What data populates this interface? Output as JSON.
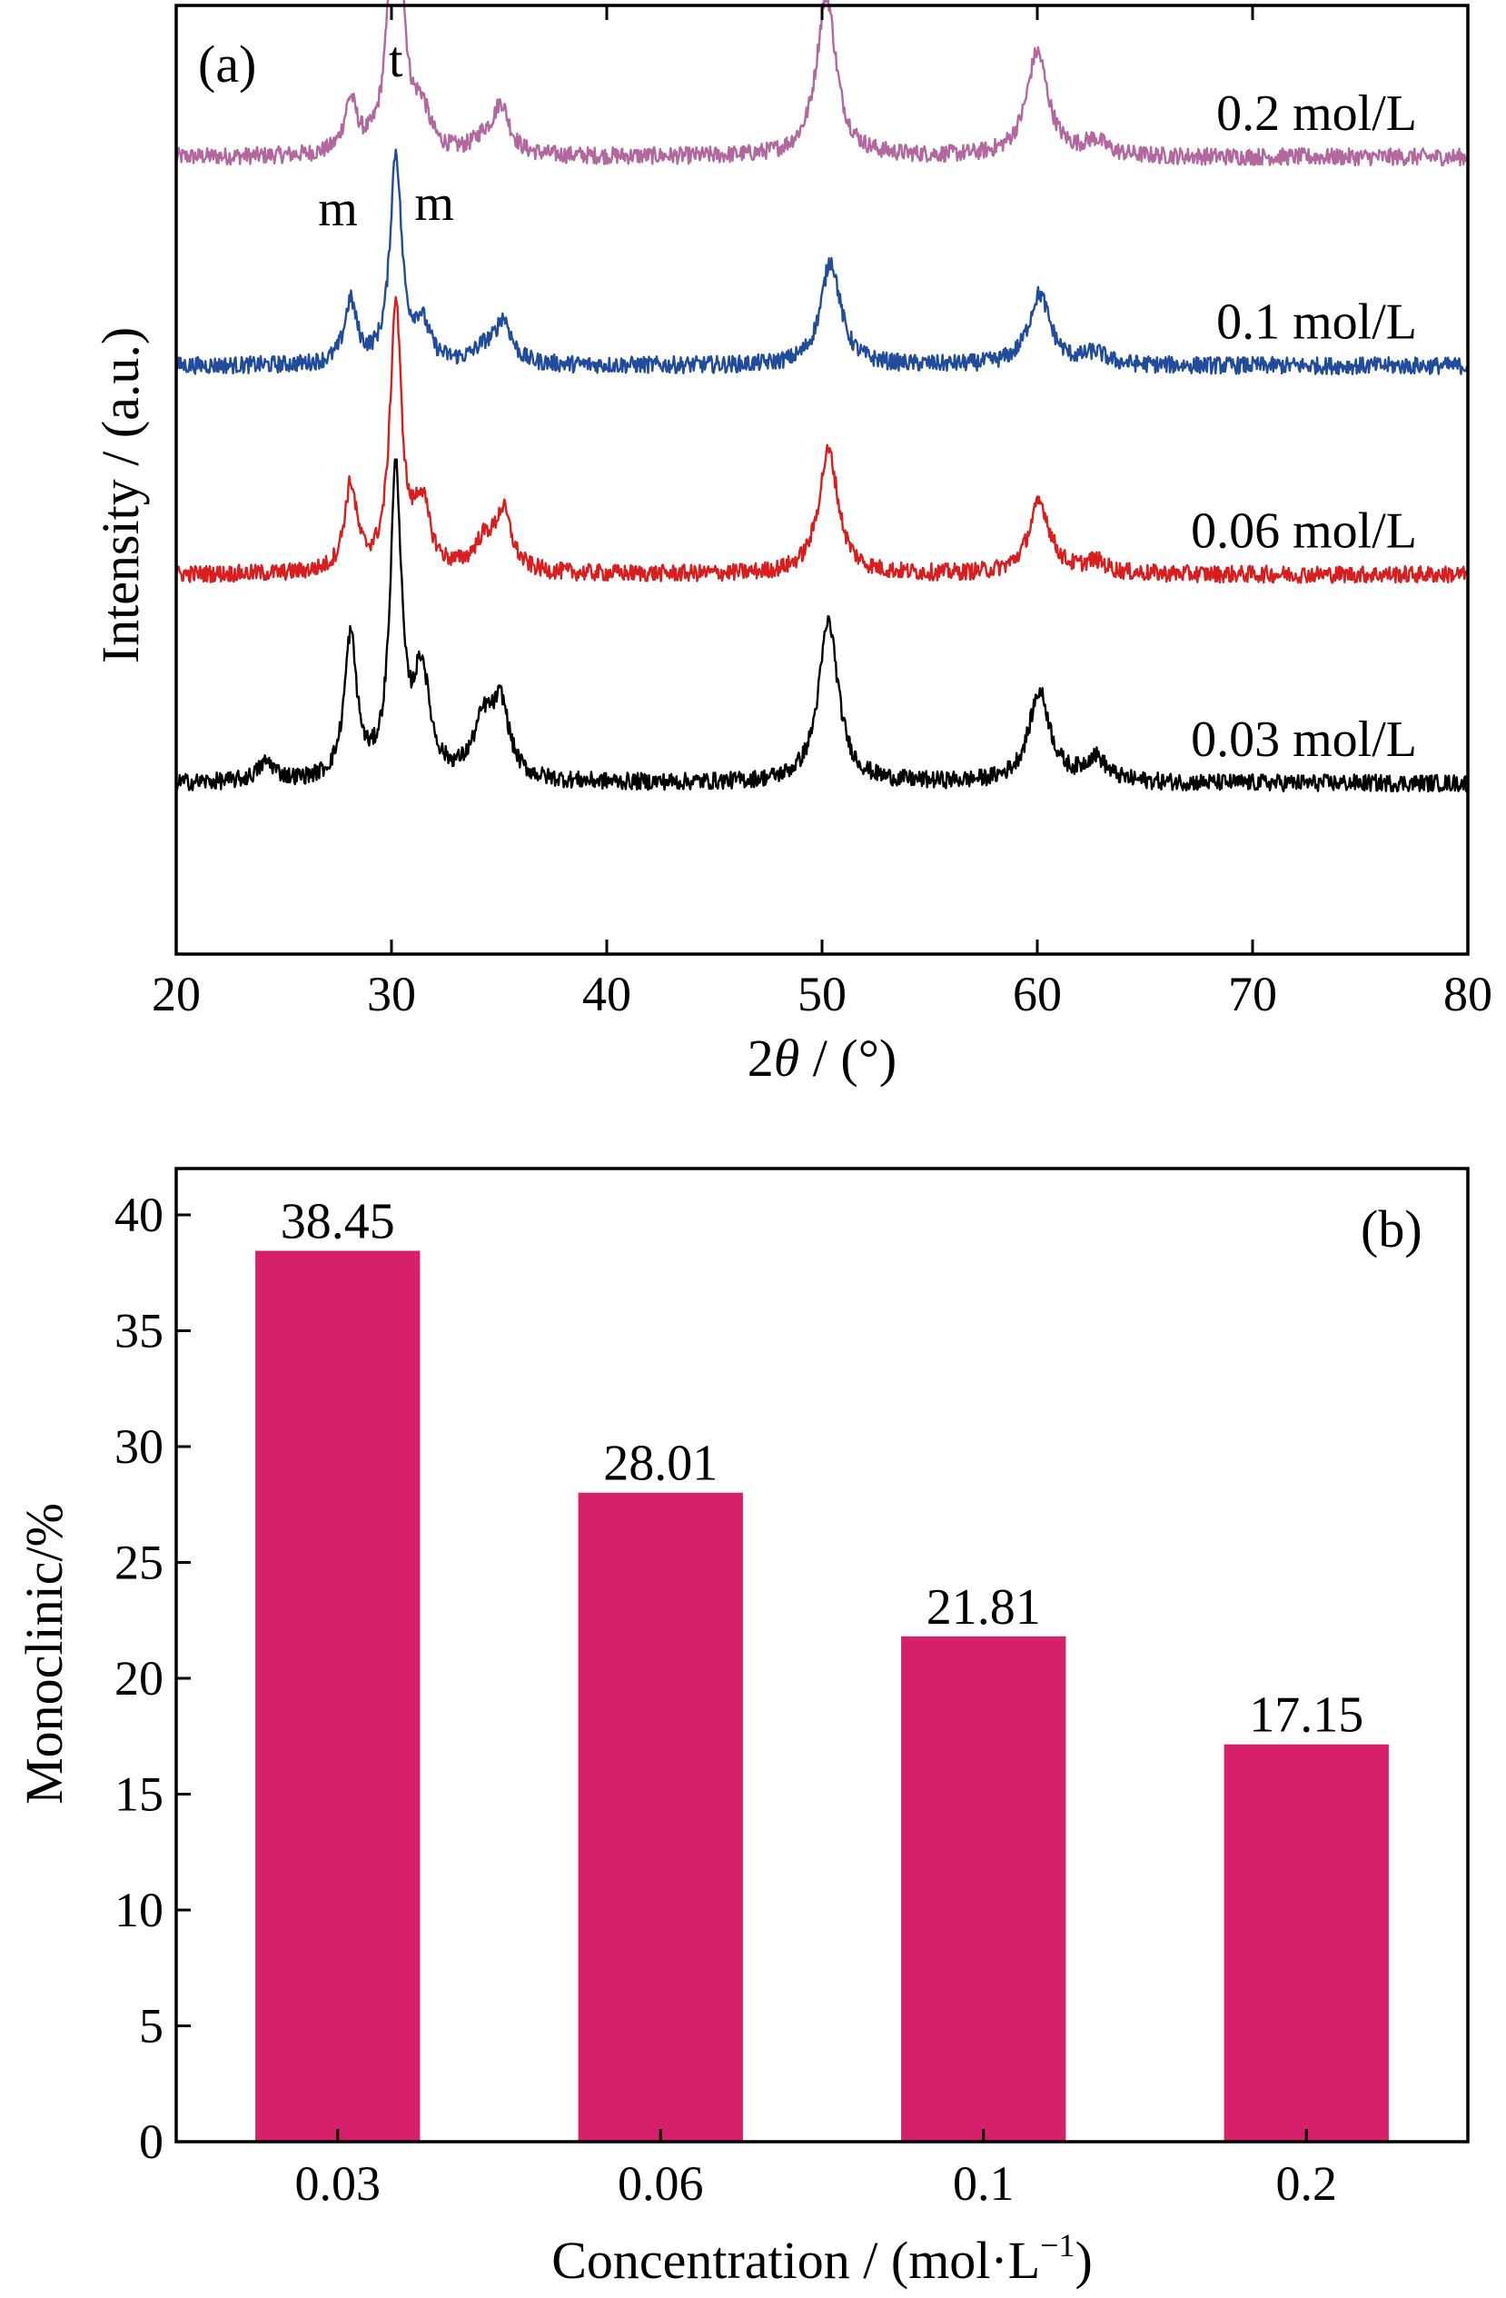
{
  "chart_data": [
    {
      "panel": "(a)",
      "type": "line",
      "xlabel_prefix": "2",
      "xlabel_symbol": "θ",
      "xlabel_suffix": " / (°)",
      "ylabel": "Intensity / (a.u.)",
      "xlim": [
        20,
        80
      ],
      "x_ticks": [
        "20",
        "30",
        "40",
        "50",
        "60",
        "70",
        "80"
      ],
      "y_ticks": "none",
      "peak_labels": [
        {
          "text": "m",
          "x": 28.1
        },
        {
          "text": "t",
          "x": 30.2
        },
        {
          "text": "m",
          "x": 31.4
        }
      ],
      "series": [
        {
          "name": "0.2 mol/L",
          "color": "#b2679f",
          "baseline": 0.84,
          "peaks": [
            [
              28.1,
              0.055,
              0.35
            ],
            [
              30.2,
              0.34,
              0.35
            ],
            [
              31.4,
              0.04,
              0.45
            ],
            [
              34.3,
              0.015,
              0.6
            ],
            [
              35.1,
              0.05,
              0.45
            ],
            [
              50.2,
              0.17,
              0.55
            ],
            [
              60.0,
              0.11,
              0.6
            ],
            [
              62.7,
              0.015,
              0.6
            ]
          ]
        },
        {
          "name": "0.1 mol/L",
          "color": "#214c9b",
          "baseline": 0.62,
          "peaks": [
            [
              28.1,
              0.065,
              0.35
            ],
            [
              30.2,
              0.22,
              0.32
            ],
            [
              31.4,
              0.04,
              0.45
            ],
            [
              34.3,
              0.015,
              0.6
            ],
            [
              35.2,
              0.045,
              0.45
            ],
            [
              50.4,
              0.11,
              0.55
            ],
            [
              60.1,
              0.075,
              0.6
            ],
            [
              62.7,
              0.012,
              0.6
            ]
          ]
        },
        {
          "name": "0.06 mol/L",
          "color": "#d81e1e",
          "baseline": 0.4,
          "peaks": [
            [
              28.1,
              0.09,
              0.35
            ],
            [
              30.2,
              0.28,
              0.32
            ],
            [
              31.4,
              0.07,
              0.45
            ],
            [
              34.3,
              0.03,
              0.6
            ],
            [
              35.2,
              0.06,
              0.45
            ],
            [
              50.3,
              0.13,
              0.55
            ],
            [
              60.1,
              0.075,
              0.6
            ],
            [
              62.7,
              0.012,
              0.6
            ]
          ]
        },
        {
          "name": "0.03 mol/L",
          "color": "#000000",
          "baseline": 0.18,
          "peaks": [
            [
              24.2,
              0.02,
              0.5
            ],
            [
              28.1,
              0.15,
              0.35
            ],
            [
              30.2,
              0.32,
              0.32
            ],
            [
              31.4,
              0.11,
              0.45
            ],
            [
              34.3,
              0.06,
              0.6
            ],
            [
              35.1,
              0.07,
              0.45
            ],
            [
              50.3,
              0.17,
              0.55
            ],
            [
              60.1,
              0.095,
              0.6
            ],
            [
              62.7,
              0.025,
              0.6
            ]
          ]
        }
      ]
    },
    {
      "panel": "(b)",
      "type": "bar",
      "categories": [
        "0.03",
        "0.06",
        "0.1",
        "0.2"
      ],
      "values": [
        38.45,
        28.01,
        21.81,
        17.15
      ],
      "data_labels": [
        "38.45",
        "28.01",
        "21.81",
        "17.15"
      ],
      "color": "#d6206c",
      "ylabel": "Monoclinic/%",
      "xlabel_main": "Concentration / (mol·L",
      "xlabel_sup": "−1",
      "xlabel_close": ")",
      "ylim": [
        0,
        42
      ],
      "y_ticks": [
        0,
        5,
        10,
        15,
        20,
        25,
        30,
        35,
        40
      ]
    }
  ]
}
